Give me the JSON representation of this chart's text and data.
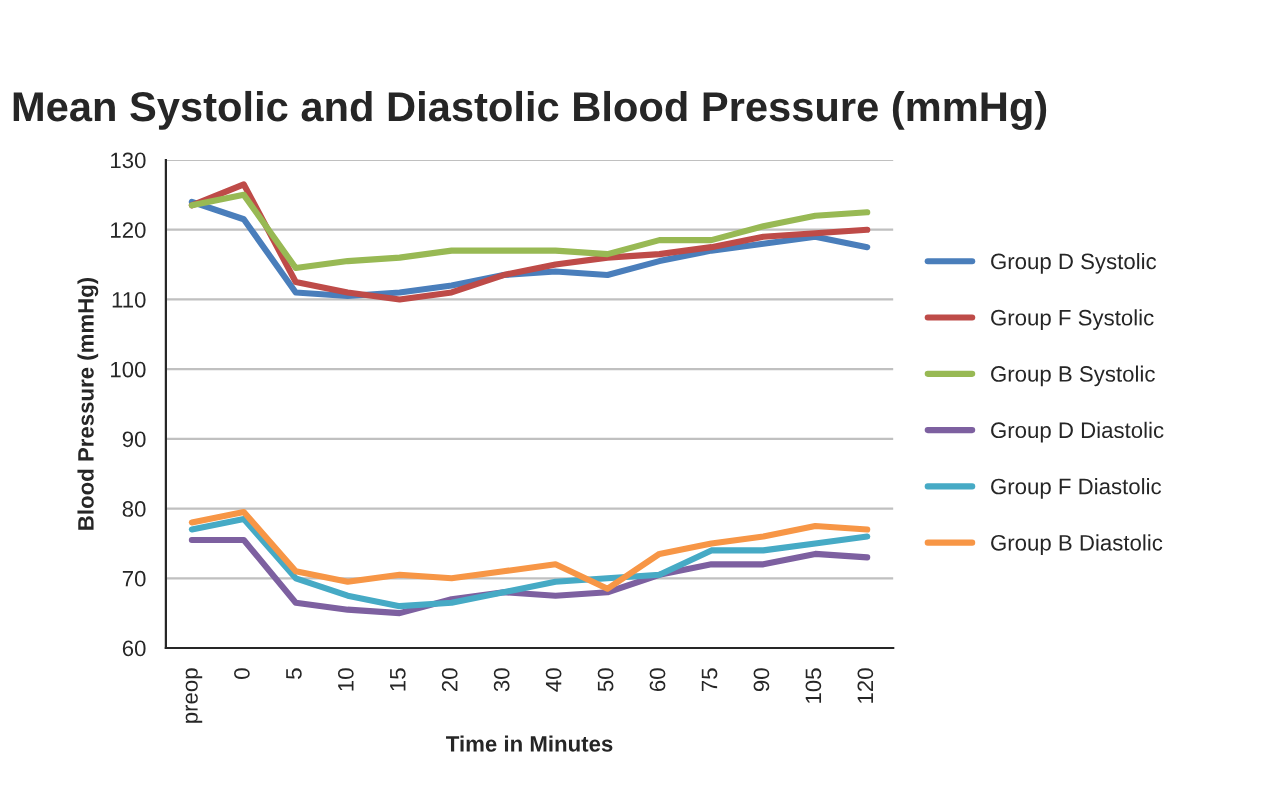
{
  "chart_data": {
    "type": "line",
    "title": "Mean Systolic and Diastolic Blood Pressure (mmHg)",
    "xlabel": "Time in Minutes",
    "ylabel": "Blood Pressure (mmHg)",
    "categories": [
      "preop",
      "0",
      "5",
      "10",
      "15",
      "20",
      "30",
      "40",
      "50",
      "60",
      "75",
      "90",
      "105",
      "120"
    ],
    "ylim": [
      60,
      130
    ],
    "yticks": [
      60,
      70,
      80,
      90,
      100,
      110,
      120,
      130
    ],
    "grid": "y",
    "legend": "right",
    "marker": "none",
    "series": [
      {
        "name": "Group D Systolic",
        "color": "#4a7ebb",
        "values": [
          124,
          121.5,
          111,
          110.5,
          111,
          112,
          113.5,
          114,
          113.5,
          115.5,
          117,
          118,
          119,
          117.5
        ]
      },
      {
        "name": "Group F Systolic",
        "color": "#be4b48",
        "values": [
          123.5,
          126.5,
          112.5,
          111,
          110,
          111,
          113.5,
          115,
          116,
          116.5,
          117.5,
          119,
          119.5,
          120
        ]
      },
      {
        "name": "Group B Systolic",
        "color": "#98b954",
        "values": [
          123.5,
          125,
          114.5,
          115.5,
          116,
          117,
          117,
          117,
          116.5,
          118.5,
          118.5,
          120.5,
          122,
          122.5
        ]
      },
      {
        "name": "Group D Diastolic",
        "color": "#7d60a0",
        "values": [
          75.5,
          75.5,
          66.5,
          65.5,
          65,
          67,
          68,
          67.5,
          68,
          70.5,
          72,
          72,
          73.5,
          73
        ]
      },
      {
        "name": "Group F Diastolic",
        "color": "#46aac5",
        "values": [
          77,
          78.5,
          70,
          67.5,
          66,
          66.5,
          68,
          69.5,
          70,
          70.5,
          74,
          74,
          75,
          76
        ]
      },
      {
        "name": "Group B Diastolic",
        "color": "#f79646",
        "values": [
          78,
          79.5,
          71,
          69.5,
          70.5,
          70,
          71,
          72,
          68.5,
          73.5,
          75,
          76,
          77.5,
          77
        ]
      }
    ]
  }
}
